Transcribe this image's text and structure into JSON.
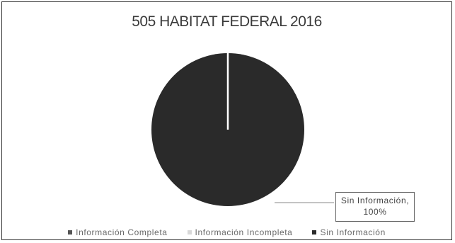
{
  "chart_data": {
    "type": "pie",
    "title": "505 HABITAT FEDERAL 2016",
    "categories": [
      "Información Completa",
      "Información Incompleta",
      "Sin Información"
    ],
    "values": [
      0,
      0,
      100
    ],
    "colors": [
      "#555555",
      "#d8d8d8",
      "#2a2a2a"
    ],
    "data_labels": [
      {
        "category": "Sin Información",
        "text_line1": "Sin Información,",
        "text_line2": "100%"
      }
    ],
    "legend_placement": "bottom"
  }
}
